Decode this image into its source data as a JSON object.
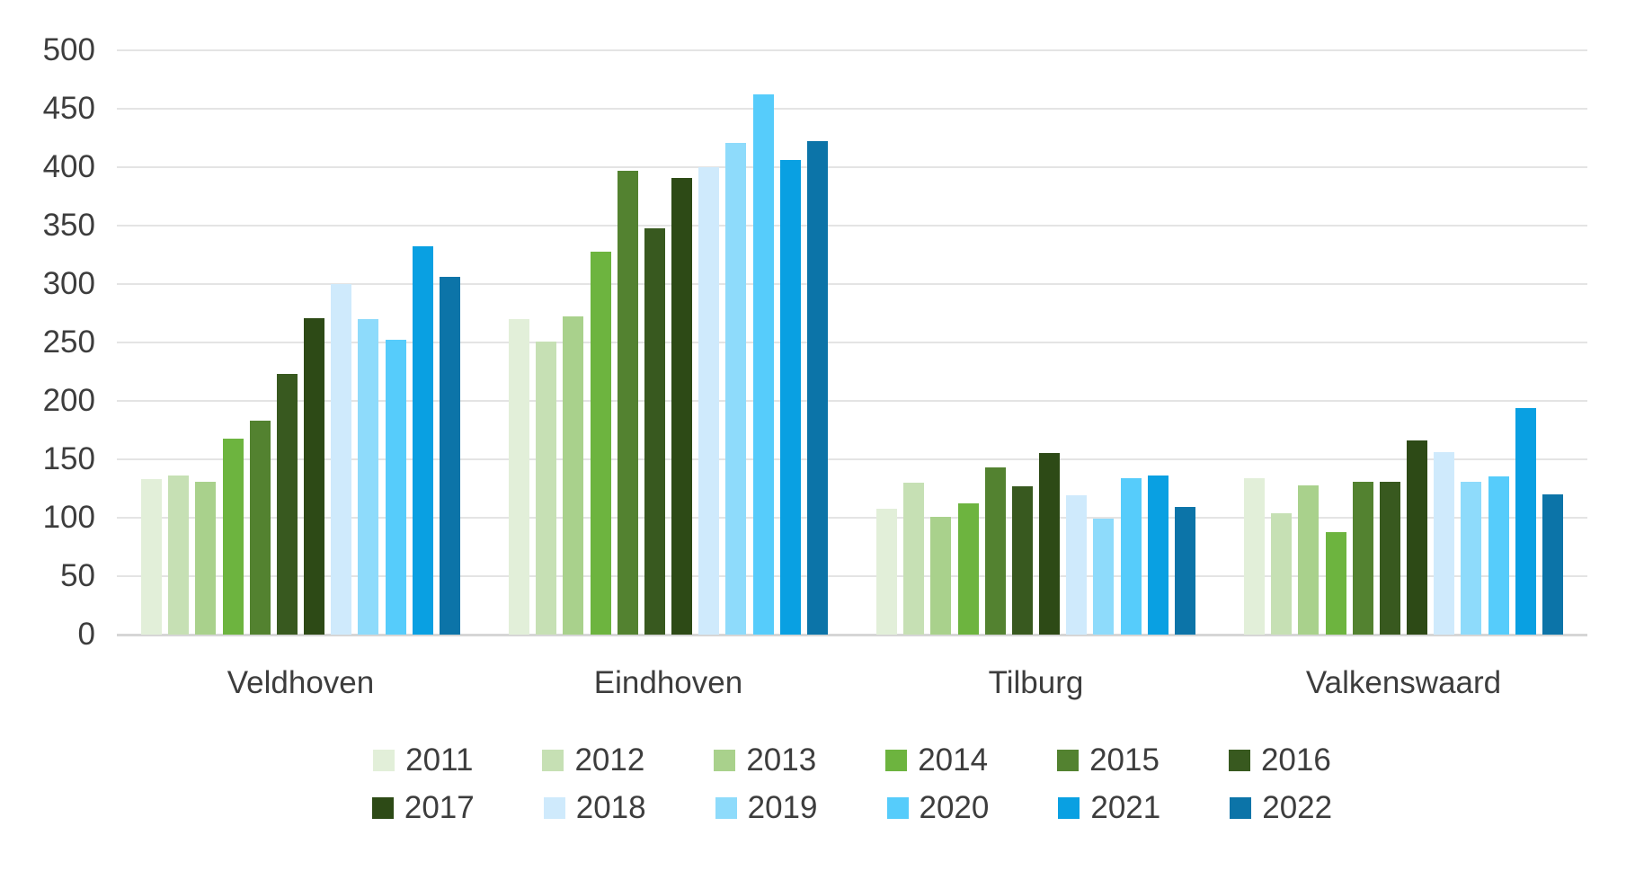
{
  "chart_data": {
    "type": "bar",
    "title": "",
    "xlabel": "",
    "ylabel": "",
    "categories": [
      "Veldhoven",
      "Eindhoven",
      "Tilburg",
      "Valkenswaard"
    ],
    "series": [
      {
        "name": "2011",
        "color": "#e2efd9",
        "values": [
          133,
          270,
          108,
          134
        ]
      },
      {
        "name": "2012",
        "color": "#c6e0b4",
        "values": [
          136,
          251,
          130,
          104
        ]
      },
      {
        "name": "2013",
        "color": "#a9d18c",
        "values": [
          131,
          272,
          101,
          128
        ]
      },
      {
        "name": "2014",
        "color": "#6db43f",
        "values": [
          168,
          328,
          112,
          88
        ]
      },
      {
        "name": "2015",
        "color": "#538230",
        "values": [
          183,
          397,
          143,
          131
        ]
      },
      {
        "name": "2016",
        "color": "#38591f",
        "values": [
          223,
          348,
          127,
          131
        ]
      },
      {
        "name": "2017",
        "color": "#2d4a16",
        "values": [
          271,
          391,
          155,
          166
        ]
      },
      {
        "name": "2018",
        "color": "#cfeafc",
        "values": [
          300,
          400,
          119,
          156
        ]
      },
      {
        "name": "2019",
        "color": "#8edbfb",
        "values": [
          270,
          421,
          99,
          131
        ]
      },
      {
        "name": "2020",
        "color": "#56ccfb",
        "values": [
          252,
          462,
          134,
          135
        ]
      },
      {
        "name": "2021",
        "color": "#09a0e2",
        "values": [
          332,
          406,
          136,
          194
        ]
      },
      {
        "name": "2022",
        "color": "#0c74a8",
        "values": [
          306,
          422,
          109,
          120
        ]
      }
    ],
    "yticks": [
      0,
      50,
      100,
      150,
      200,
      250,
      300,
      350,
      400,
      450,
      500
    ],
    "ylim": [
      0,
      500
    ],
    "grid": true,
    "legend_position": "bottom",
    "legend_rows": [
      [
        "2011",
        "2012",
        "2013",
        "2014",
        "2015",
        "2016"
      ],
      [
        "2017",
        "2018",
        "2019",
        "2020",
        "2021",
        "2022"
      ]
    ],
    "colors": {
      "text": "#3d3d3d",
      "gridline": "#e4e4e4",
      "axis_line": "#d6d6d6",
      "background": "#ffffff"
    }
  }
}
